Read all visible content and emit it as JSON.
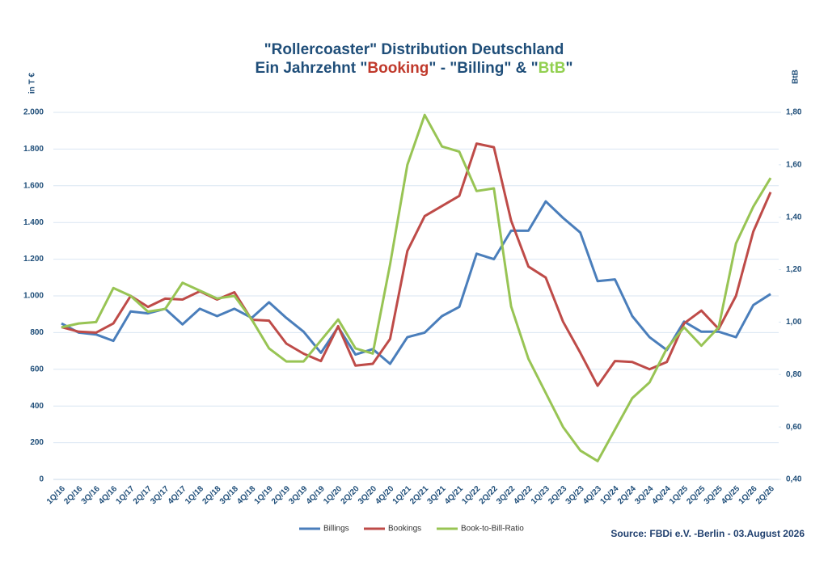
{
  "chart_data": {
    "type": "line",
    "title_lines": [
      [
        {
          "text": "\"Rollercoaster\" Distribution Deutschland",
          "color": "#1f4e79"
        }
      ],
      [
        {
          "text": "Ein Jahrzehnt \"",
          "color": "#1f4e79"
        },
        {
          "text": "Booking",
          "color": "#c0392b"
        },
        {
          "text": "\" - \"Billing\"  & \"",
          "color": "#1f4e79"
        },
        {
          "text": "BtB",
          "color": "#92d050"
        },
        {
          "text": "\"",
          "color": "#1f4e79"
        }
      ]
    ],
    "y_label": "in T €",
    "y2_label": "BtB",
    "source": "Source: FBDi e.V. -Berlin - 03.August 2026",
    "categories": [
      "1Q/16",
      "2Q/16",
      "3Q/16",
      "4Q/16",
      "1Q/17",
      "2Q/17",
      "3Q/17",
      "4Q/17",
      "1Q/18",
      "2Q/18",
      "3Q/18",
      "4Q/18",
      "1Q/19",
      "2Q/19",
      "3Q/19",
      "4Q/19",
      "1Q/20",
      "2Q/20",
      "3Q/20",
      "4Q/20",
      "1Q/21",
      "2Q/21",
      "3Q/21",
      "4Q/21",
      "1Q/22",
      "2Q/22",
      "3Q/22",
      "4Q/22",
      "1Q/23",
      "2Q/23",
      "3Q/23",
      "4Q/23",
      "1Q/24",
      "2Q/24",
      "3Q/24",
      "4Q/24",
      "1Q/25",
      "2Q/25",
      "3Q/25",
      "4Q/25",
      "1Q/26",
      "2Q/26"
    ],
    "series": [
      {
        "name": "Billings",
        "color": "#4a7ebb",
        "axis": "y",
        "values": [
          850,
          800,
          790,
          755,
          915,
          905,
          930,
          845,
          930,
          890,
          930,
          880,
          965,
          880,
          805,
          690,
          830,
          680,
          710,
          630,
          775,
          800,
          890,
          940,
          1230,
          1200,
          1355,
          1355,
          1515,
          1425,
          1345,
          1080,
          1090,
          890,
          775,
          705,
          860,
          805,
          805,
          775,
          950,
          1010
        ]
      },
      {
        "name": "Bookings",
        "color": "#be4b48",
        "axis": "y",
        "values": [
          830,
          805,
          800,
          850,
          1000,
          940,
          985,
          980,
          1025,
          980,
          1020,
          870,
          865,
          740,
          685,
          645,
          835,
          620,
          630,
          765,
          1245,
          1435,
          1490,
          1545,
          1830,
          1810,
          1410,
          1160,
          1100,
          860,
          690,
          510,
          645,
          640,
          600,
          640,
          850,
          920,
          820,
          1000,
          1350,
          1565
        ]
      },
      {
        "name": "Book-to-Bill-Ratio",
        "color": "#98c454",
        "axis": "y2",
        "values": [
          0.98,
          0.995,
          1.0,
          1.13,
          1.1,
          1.04,
          1.05,
          1.15,
          1.12,
          1.09,
          1.1,
          1.01,
          0.9,
          0.85,
          0.85,
          0.93,
          1.01,
          0.9,
          0.88,
          1.22,
          1.6,
          1.79,
          1.67,
          1.65,
          1.5,
          1.51,
          1.06,
          0.86,
          0.73,
          0.6,
          0.51,
          0.47,
          0.59,
          0.71,
          0.77,
          0.9,
          0.98,
          0.91,
          0.98,
          1.3,
          1.44,
          1.55
        ]
      }
    ],
    "ylim": [
      0,
      2000
    ],
    "yticks": [
      0,
      200,
      400,
      600,
      800,
      {
        "value": 1000,
        "label": "1.000"
      },
      {
        "value": 1200,
        "label": "1.200"
      },
      {
        "value": 1400,
        "label": "1.400"
      },
      {
        "value": 1600,
        "label": "1.600"
      },
      {
        "value": 1800,
        "label": "1.800"
      },
      {
        "value": 2000,
        "label": "2.000"
      }
    ],
    "y2lim": [
      0.4,
      1.8
    ],
    "y2ticks": [
      {
        "value": 0.4,
        "label": "0,40"
      },
      {
        "value": 0.6,
        "label": "0,60"
      },
      {
        "value": 0.8,
        "label": "0,80"
      },
      {
        "value": 1.0,
        "label": "1,00"
      },
      {
        "value": 1.2,
        "label": "1,20"
      },
      {
        "value": 1.4,
        "label": "1,40"
      },
      {
        "value": 1.6,
        "label": "1,60"
      },
      {
        "value": 1.8,
        "label": "1,80"
      }
    ],
    "grid": true
  }
}
